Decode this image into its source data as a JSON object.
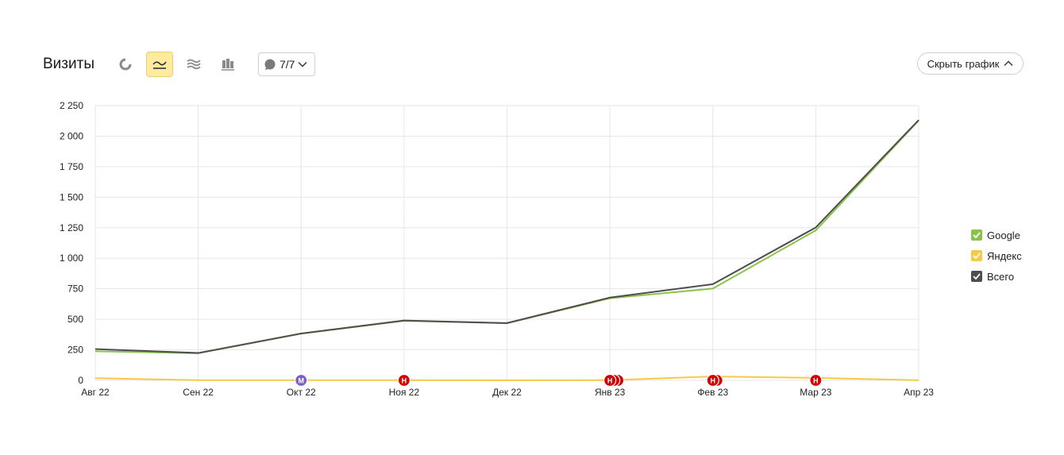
{
  "header": {
    "title": "Визиты",
    "notes_label": "7/7",
    "hide_label": "Скрыть график",
    "chart_types": [
      {
        "name": "pie-chart-icon",
        "active": false
      },
      {
        "name": "line-chart-icon",
        "active": true
      },
      {
        "name": "area-chart-icon",
        "active": false
      },
      {
        "name": "bar-chart-icon",
        "active": false
      }
    ]
  },
  "chart_data": {
    "type": "line",
    "categories": [
      "Авг 22",
      "Сен 22",
      "Окт 22",
      "Ноя 22",
      "Дек 22",
      "Янв 23",
      "Фев 23",
      "Мар 23",
      "Апр 23"
    ],
    "ylim": [
      0,
      2250
    ],
    "yticks": [
      0,
      250,
      500,
      750,
      1000,
      1250,
      1500,
      1750,
      2000,
      2250
    ],
    "ytick_labels": [
      "0",
      "250",
      "500",
      "750",
      "1 000",
      "1 250",
      "1 500",
      "1 750",
      "2 000",
      "2 250"
    ],
    "grid": true,
    "legend_position": "right",
    "series": [
      {
        "name": "Google",
        "color": "#8bc34a",
        "values": [
          238,
          222,
          382,
          488,
          468,
          672,
          752,
          1228,
          2128
        ]
      },
      {
        "name": "Яндекс",
        "color": "#f7c948",
        "values": [
          18,
          2,
          2,
          2,
          1,
          2,
          32,
          20,
          1
        ]
      },
      {
        "name": "Всего",
        "color": "#4d4d4d",
        "values": [
          256,
          224,
          384,
          490,
          469,
          678,
          788,
          1252,
          2132
        ]
      }
    ],
    "annotations": [
      {
        "x": "Окт 22",
        "label": "М",
        "color": "#7e5fc4",
        "count": 1
      },
      {
        "x": "Ноя 22",
        "label": "Н",
        "color": "#d50000",
        "count": 1
      },
      {
        "x": "Янв 23",
        "label": "Н",
        "color": "#d50000",
        "count": 3
      },
      {
        "x": "Фев 23",
        "label": "Н",
        "color": "#d50000",
        "count": 2
      },
      {
        "x": "Мар 23",
        "label": "Н",
        "color": "#d50000",
        "count": 1
      }
    ]
  }
}
